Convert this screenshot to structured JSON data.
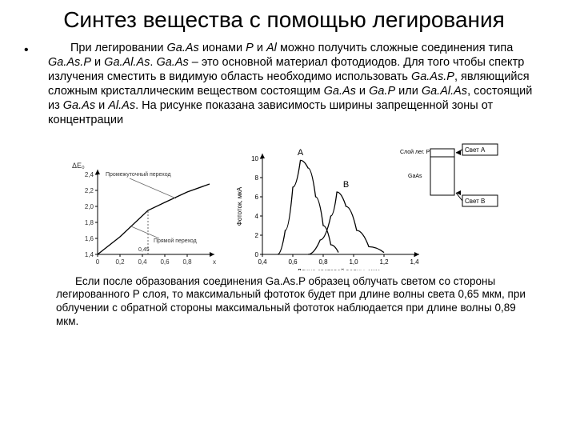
{
  "title": "Синтез вещества с помощью легирования",
  "bullet": "•",
  "p1_a": "При легировании ",
  "p1_b": " ионами ",
  "p1_c": " и ",
  "p1_d": " можно получить сложные соединения типа ",
  "p1_e": " и ",
  "p1_f": ". ",
  "p1_g": " – это основной материал фотодиодов. Для того чтобы спектр излучения сместить в видимую область необходимо использовать ",
  "p1_h": ", являющийся сложным кристаллическим веществом состоящим ",
  "p1_i": " и ",
  "p1_j": " или ",
  "p1_k": ", состоящий из ",
  "p1_l": " и ",
  "p1_m": ". На рисунке показана зависимость ширины запрещенной зоны от концентрации",
  "GaAs": "Ga.As",
  "P": "P",
  "Al": "Al",
  "GaAsP": "Ga.As.P",
  "GaAlAs": "Ga.Al.As",
  "GaP": "Ga.P",
  "AlAs": "Al.As",
  "p2": "Если после образования соединения Ga.As.P образец облучать светом со стороны легированного P слоя, то максимальный фототок будет при длине волны света 0,65 мкм, при облучении с обратной стороны максимальный фототок наблюдается при длине волны 0,89 мкм.",
  "chart1": {
    "ylabel": "ΔE₀",
    "yTicks": [
      "2,4",
      "2,2",
      "2,0",
      "1,8",
      "1,6",
      "1,4"
    ],
    "xTicks": [
      "0",
      "0,2",
      "0,4",
      "0,6",
      "0,8",
      "x"
    ],
    "note1": "Промежуточный переход",
    "note2": "Прямой переход",
    "marker": "0,45",
    "colors": {
      "axis": "#000000",
      "grid": "#666666",
      "line": "#000000",
      "label": "#333333"
    },
    "line": [
      [
        0,
        1.4
      ],
      [
        0.2,
        1.62
      ],
      [
        0.45,
        1.95
      ],
      [
        0.6,
        2.05
      ],
      [
        0.8,
        2.18
      ],
      [
        1.0,
        2.28
      ]
    ],
    "xRange": [
      0,
      1.0
    ],
    "yRange": [
      1.4,
      2.4
    ]
  },
  "chart2": {
    "ylabel": "Фототок, мкА",
    "yTicks": [
      "10",
      "8",
      "6",
      "4",
      "2",
      "0"
    ],
    "xTicks": [
      "0,4",
      "0,6",
      "0,8",
      "1,0",
      "1,2",
      "1,4"
    ],
    "xlabel": "Длина световой волны, мкм",
    "labelA": "A",
    "labelB": "B",
    "box1": "Слой лег. P",
    "box2": "GaAs",
    "arrowA": "Свет А",
    "arrowB": "Свет В",
    "colors": {
      "axis": "#000000",
      "line": "#000000",
      "box": "#000000",
      "fill": "#000000"
    },
    "curveA": [
      [
        0.5,
        0
      ],
      [
        0.55,
        2.5
      ],
      [
        0.6,
        7
      ],
      [
        0.65,
        9.8
      ],
      [
        0.7,
        9
      ],
      [
        0.75,
        6
      ],
      [
        0.8,
        3
      ],
      [
        0.85,
        1
      ],
      [
        0.9,
        0.2
      ]
    ],
    "curveB": [
      [
        0.7,
        0
      ],
      [
        0.78,
        1.5
      ],
      [
        0.85,
        4
      ],
      [
        0.89,
        6.5
      ],
      [
        0.95,
        5
      ],
      [
        1.02,
        2.5
      ],
      [
        1.1,
        0.8
      ],
      [
        1.2,
        0.2
      ]
    ],
    "xRange": [
      0.4,
      1.4
    ],
    "yRange": [
      0,
      10
    ]
  }
}
